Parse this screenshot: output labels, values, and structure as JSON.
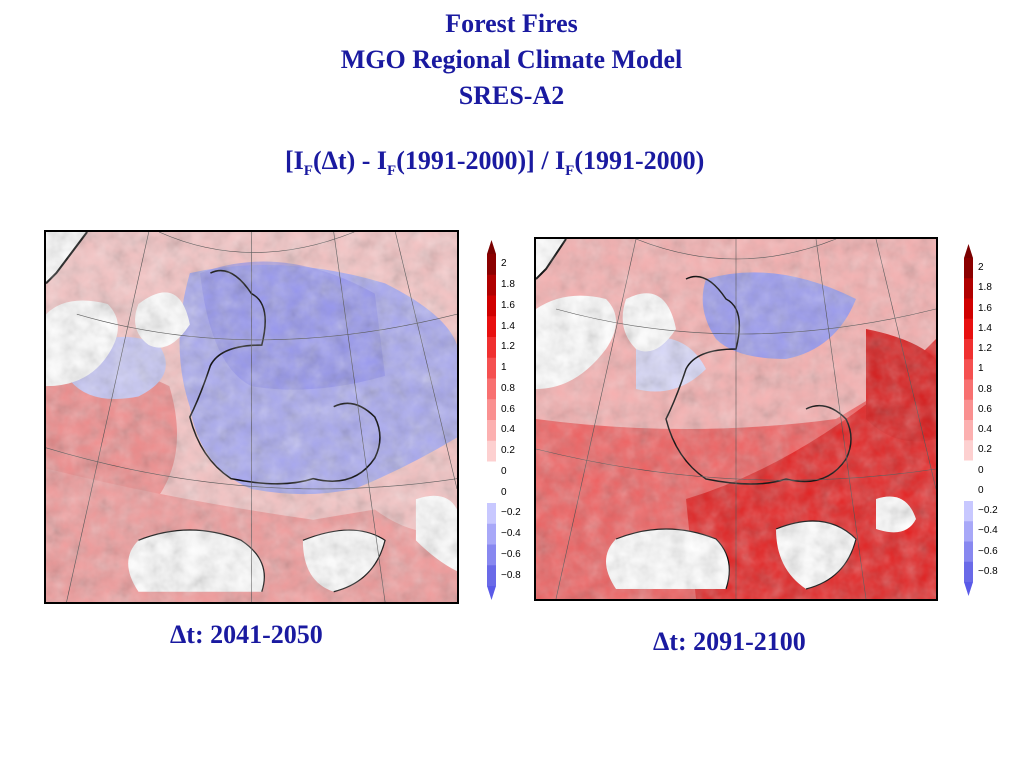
{
  "title": {
    "line1": "Forest Fires",
    "line2": "MGO Regional Climate Model",
    "line3": "SRES-A2"
  },
  "formula": {
    "open": "[I",
    "sub1": "F",
    "part2": "(Δt) - I",
    "sub2": "F",
    "part3": "(1991-2000)] / I",
    "sub3": "F",
    "part4": "(1991-2000)"
  },
  "maps": [
    {
      "caption": "Δt: 2041-2050",
      "colorbar_levels": [
        "2",
        "1.8",
        "1.6",
        "1.4",
        "1.2",
        "1",
        "0.8",
        "0.6",
        "0.4",
        "0.2",
        "0",
        "0",
        "−0.2",
        "−0.4",
        "−0.6",
        "−0.8"
      ]
    },
    {
      "caption": "Δt: 2091-2100",
      "colorbar_levels": [
        "2",
        "1.8",
        "1.6",
        "1.4",
        "1.2",
        "1",
        "0.8",
        "0.6",
        "0.4",
        "0.2",
        "0",
        "0",
        "−0.2",
        "−0.4",
        "−0.6",
        "−0.8"
      ]
    }
  ],
  "colors": {
    "text": "#1a1aa0",
    "scale": [
      "#8b0000",
      "#b00000",
      "#d00000",
      "#e81010",
      "#f03030",
      "#f55050",
      "#f87070",
      "#fa9090",
      "#fcb0b0",
      "#fdd0d0",
      "#ffffff",
      "#ffffff",
      "#c8c8ff",
      "#a8a8f8",
      "#8888f0",
      "#6a6ae8"
    ]
  }
}
